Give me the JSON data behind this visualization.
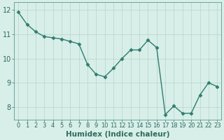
{
  "x": [
    0,
    1,
    2,
    3,
    4,
    5,
    6,
    7,
    8,
    9,
    10,
    11,
    12,
    13,
    14,
    15,
    16,
    17,
    18,
    19,
    20,
    21,
    22,
    23
  ],
  "y": [
    11.9,
    11.4,
    11.1,
    10.9,
    10.85,
    10.8,
    10.7,
    10.6,
    9.75,
    9.35,
    9.25,
    9.6,
    10.0,
    10.35,
    10.35,
    10.75,
    10.45,
    7.7,
    8.05,
    7.75,
    7.75,
    8.5,
    9.0,
    8.85
  ],
  "line_color": "#2e7d6e",
  "marker": "D",
  "marker_size": 2.5,
  "bg_color": "#d8eee9",
  "grid_color": "#b8d4cc",
  "xlabel": "Humidex (Indice chaleur)",
  "ylim": [
    7.5,
    12.3
  ],
  "xlim": [
    -0.5,
    23.5
  ],
  "yticks": [
    8,
    9,
    10,
    11,
    12
  ],
  "xticks": [
    0,
    1,
    2,
    3,
    4,
    5,
    6,
    7,
    8,
    9,
    10,
    11,
    12,
    13,
    14,
    15,
    16,
    17,
    18,
    19,
    20,
    21,
    22,
    23
  ],
  "xlabel_fontsize": 7.5,
  "ytick_fontsize": 7,
  "xtick_fontsize": 6,
  "tick_color": "#2e6b5e",
  "axis_color": "#5a9a8a",
  "linewidth": 1.0
}
